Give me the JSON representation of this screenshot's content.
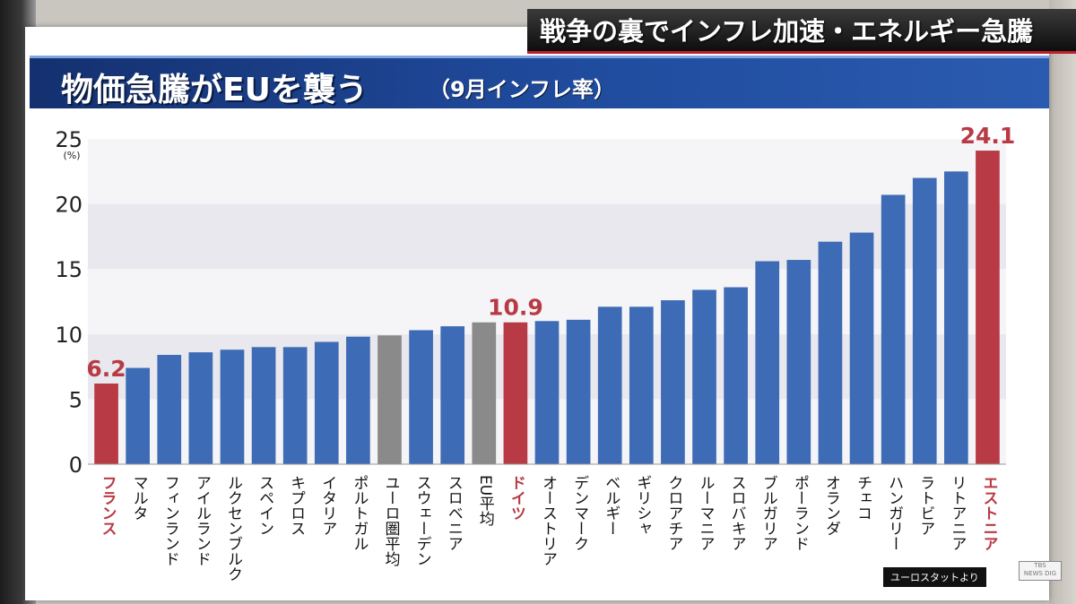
{
  "headline": "戦争の裏でインフレ加速・エネルギー急騰",
  "title": {
    "main": "物価急騰がEUを襲う",
    "sub": "（9月インフレ率）"
  },
  "source": "ユーロスタットより",
  "logo": {
    "line1": "TBS",
    "line2": "NEWS DIG"
  },
  "colors": {
    "normal": "#3d6bb5",
    "highlight": "#b83a45",
    "average": "#8a8a8a",
    "bandDark": "#e8e8ee",
    "bandLight": "#f5f5f8",
    "highlightText": "#b83a45"
  },
  "chart_data": {
    "type": "bar",
    "title": "物価急騰がEUを襲う（9月インフレ率）",
    "ylabel": "(%)",
    "ylim": [
      0,
      25
    ],
    "yticks": [
      0,
      5,
      10,
      15,
      20,
      25
    ],
    "categories": [
      "フランス",
      "マルタ",
      "フィンランド",
      "アイルランド",
      "ルクセンブルク",
      "スペイン",
      "キプロス",
      "イタリア",
      "ポルトガル",
      "ユーロ圏平均",
      "スウェーデン",
      "スロベニア",
      "EU平均",
      "ドイツ",
      "オーストリア",
      "デンマーク",
      "ベルギー",
      "ギリシャ",
      "クロアチア",
      "ルーマニア",
      "スロバキア",
      "ブルガリア",
      "ポーランド",
      "オランダ",
      "チェコ",
      "ハンガリー",
      "ラトビア",
      "リトアニア",
      "エストニア"
    ],
    "values": [
      6.2,
      7.4,
      8.4,
      8.6,
      8.8,
      9.0,
      9.0,
      9.4,
      9.8,
      9.9,
      10.3,
      10.6,
      10.9,
      10.9,
      11.0,
      11.1,
      12.1,
      12.1,
      12.6,
      13.4,
      13.6,
      15.6,
      15.7,
      17.1,
      17.8,
      20.7,
      22.0,
      22.5,
      24.1
    ],
    "kinds": [
      "highlight",
      "normal",
      "normal",
      "normal",
      "normal",
      "normal",
      "normal",
      "normal",
      "normal",
      "average",
      "normal",
      "normal",
      "average",
      "highlight",
      "normal",
      "normal",
      "normal",
      "normal",
      "normal",
      "normal",
      "normal",
      "normal",
      "normal",
      "normal",
      "normal",
      "normal",
      "normal",
      "normal",
      "highlight"
    ],
    "data_labels": [
      {
        "index": 0,
        "text": "6.2"
      },
      {
        "index": 13,
        "text": "10.9"
      },
      {
        "index": 28,
        "text": "24.1"
      }
    ]
  }
}
